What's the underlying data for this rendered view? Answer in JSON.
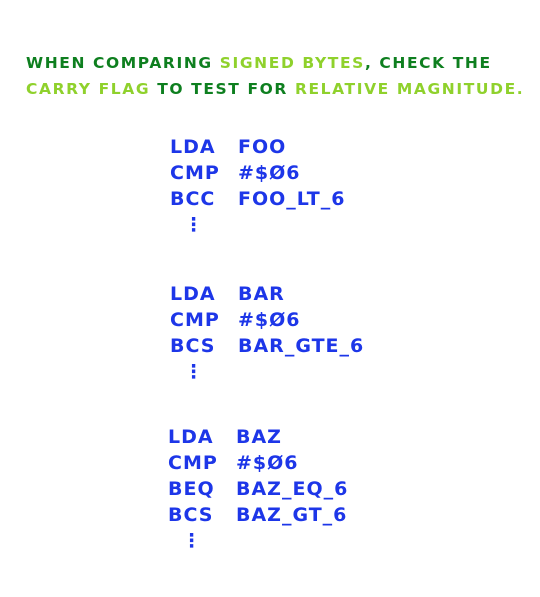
{
  "headline": {
    "line1": [
      {
        "text": "When comparing ",
        "tone": "dark"
      },
      {
        "text": "signed bytes",
        "tone": "light"
      },
      {
        "text": ", check the",
        "tone": "dark"
      }
    ],
    "line2": [
      {
        "text": "Carry flag",
        "tone": "light"
      },
      {
        "text": " to test ",
        "tone": "dark"
      },
      {
        "text": "for ",
        "tone": "dark"
      },
      {
        "text": "relative magnitude.",
        "tone": "light"
      }
    ]
  },
  "colors": {
    "dark_green": "#0e7f1f",
    "light_green": "#8fd12c",
    "code_blue": "#1d36e8"
  },
  "blocks": [
    {
      "rows": [
        {
          "op": "LDA",
          "arg": "FOO"
        },
        {
          "op": "CMP",
          "arg": "#$Ø6"
        },
        {
          "op": "BCC",
          "arg": "FOO_LT_6"
        }
      ],
      "ellipsis": "⋮"
    },
    {
      "rows": [
        {
          "op": "LDA",
          "arg": "BAR"
        },
        {
          "op": "CMP",
          "arg": "#$Ø6"
        },
        {
          "op": "BCS",
          "arg": "BAR_GTE_6"
        }
      ],
      "ellipsis": "⋮"
    },
    {
      "rows": [
        {
          "op": "LDA",
          "arg": "BAZ"
        },
        {
          "op": "CMP",
          "arg": "#$Ø6"
        },
        {
          "op": "BEQ",
          "arg": "BAZ_EQ_6"
        },
        {
          "op": "BCS",
          "arg": "BAZ_GT_6"
        }
      ],
      "ellipsis": "⋮"
    }
  ]
}
